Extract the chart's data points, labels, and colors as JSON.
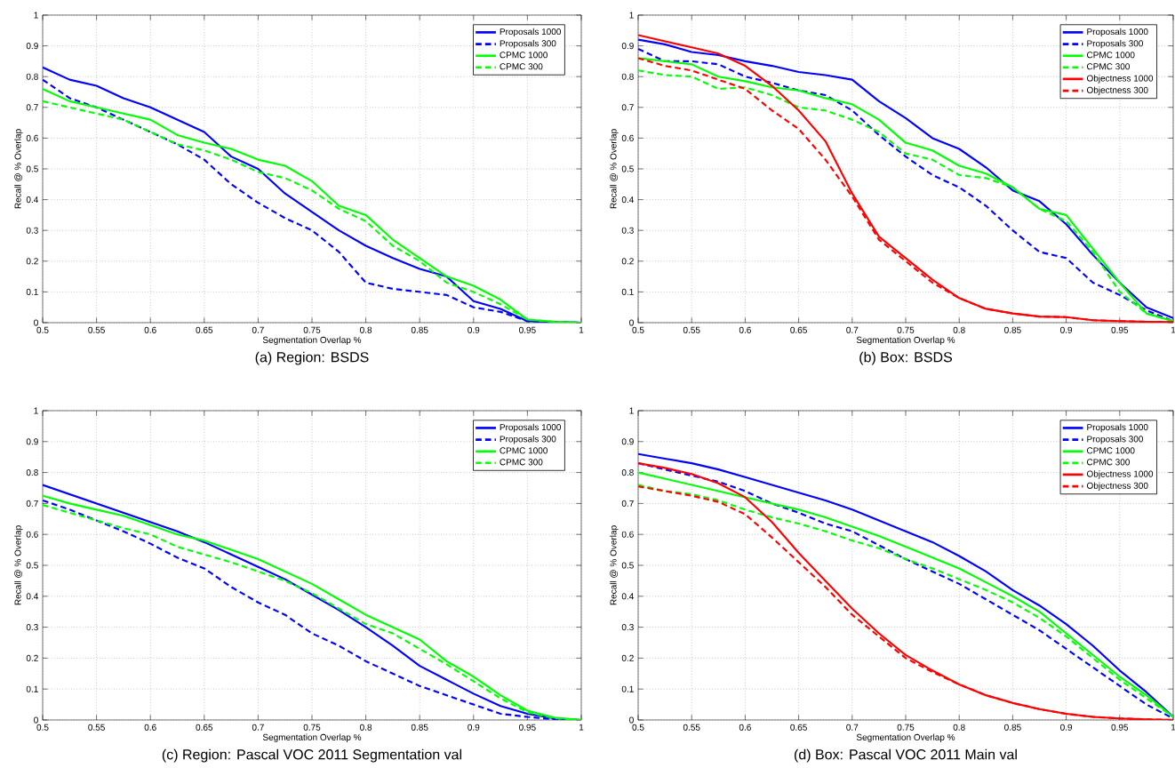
{
  "chart_data": [
    {
      "type": "line",
      "title": "(a) Region: BSDS",
      "xlabel": "Segmentation Overlap %",
      "ylabel": "Recall @ % Overlap",
      "x": [
        0.5,
        0.525,
        0.55,
        0.575,
        0.6,
        0.625,
        0.65,
        0.675,
        0.7,
        0.725,
        0.75,
        0.775,
        0.8,
        0.825,
        0.85,
        0.875,
        0.9,
        0.925,
        0.95,
        0.975,
        1
      ],
      "xlim": [
        0.5,
        1
      ],
      "ylim": [
        0,
        1
      ],
      "xticks": [
        0.5,
        0.55,
        0.6,
        0.65,
        0.7,
        0.75,
        0.8,
        0.85,
        0.9,
        0.95,
        1
      ],
      "yticks": [
        0,
        0.1,
        0.2,
        0.3,
        0.4,
        0.5,
        0.6,
        0.7,
        0.8,
        0.9,
        1
      ],
      "grid": true,
      "legend": "top right",
      "marker": "none",
      "series": [
        {
          "name": "Proposals 1000",
          "color": "#0000ff",
          "line_style": "solid",
          "values": [
            0.83,
            0.79,
            0.77,
            0.73,
            0.7,
            0.66,
            0.62,
            0.54,
            0.5,
            0.42,
            0.36,
            0.3,
            0.25,
            0.21,
            0.175,
            0.15,
            0.07,
            0.045,
            0.005,
            null,
            0
          ]
        },
        {
          "name": "Proposals 300",
          "color": "#0000ff",
          "line_style": "dashed",
          "values": [
            0.79,
            0.73,
            0.7,
            0.66,
            0.62,
            0.58,
            0.53,
            0.45,
            0.39,
            0.34,
            0.3,
            0.23,
            0.13,
            0.11,
            0.1,
            0.09,
            0.05,
            0.035,
            0.005,
            0.002,
            0
          ]
        },
        {
          "name": "CPMC 1000",
          "color": "#00ff00",
          "line_style": "solid",
          "values": [
            0.76,
            0.72,
            0.7,
            0.68,
            0.66,
            0.61,
            0.585,
            0.565,
            0.53,
            0.51,
            0.46,
            0.38,
            0.35,
            0.27,
            0.21,
            0.15,
            0.12,
            0.075,
            0.01,
            0.003,
            0
          ]
        },
        {
          "name": "CPMC 300",
          "color": "#00ff00",
          "line_style": "dashed",
          "values": [
            0.72,
            0.7,
            0.68,
            0.66,
            0.62,
            0.58,
            0.56,
            0.53,
            0.49,
            0.47,
            0.43,
            0.37,
            0.33,
            0.25,
            0.2,
            0.13,
            0.1,
            0.06,
            0.01,
            0.003,
            0
          ]
        }
      ]
    },
    {
      "type": "line",
      "title": "(b) Box: BSDS",
      "xlabel": "Segmentation Overlap %",
      "ylabel": "Recall @ % Overlap",
      "x": [
        0.5,
        0.525,
        0.55,
        0.575,
        0.6,
        0.625,
        0.65,
        0.675,
        0.7,
        0.725,
        0.75,
        0.775,
        0.8,
        0.825,
        0.85,
        0.875,
        0.9,
        0.925,
        0.95,
        0.975,
        1
      ],
      "xlim": [
        0.5,
        1
      ],
      "ylim": [
        0,
        1
      ],
      "xticks": [
        0.5,
        0.55,
        0.6,
        0.65,
        0.7,
        0.75,
        0.8,
        0.85,
        0.9,
        0.95,
        1
      ],
      "yticks": [
        0,
        0.1,
        0.2,
        0.3,
        0.4,
        0.5,
        0.6,
        0.7,
        0.8,
        0.9,
        1
      ],
      "grid": true,
      "legend": "top right",
      "marker": "none",
      "series": [
        {
          "name": "Proposals 1000",
          "color": "#0000ff",
          "line_style": "solid",
          "values": [
            0.92,
            0.905,
            0.88,
            0.87,
            0.85,
            0.835,
            0.815,
            0.805,
            0.79,
            0.72,
            0.665,
            0.6,
            0.565,
            0.505,
            0.43,
            0.395,
            0.32,
            0.22,
            0.13,
            0.05,
            0.015
          ]
        },
        {
          "name": "Proposals 300",
          "color": "#0000ff",
          "line_style": "dashed",
          "values": [
            0.89,
            0.85,
            0.85,
            0.84,
            0.8,
            0.78,
            0.755,
            0.74,
            0.69,
            0.61,
            0.54,
            0.48,
            0.44,
            0.38,
            0.3,
            0.23,
            0.21,
            0.13,
            0.09,
            0.04,
            0.005
          ]
        },
        {
          "name": "CPMC 1000",
          "color": "#00ff00",
          "line_style": "solid",
          "values": [
            0.86,
            0.85,
            0.84,
            0.8,
            0.785,
            0.765,
            0.755,
            0.73,
            0.71,
            0.66,
            0.585,
            0.56,
            0.51,
            0.485,
            0.44,
            0.37,
            0.35,
            0.24,
            0.13,
            0.03,
            0.005
          ]
        },
        {
          "name": "CPMC 300",
          "color": "#00ff00",
          "line_style": "dashed",
          "values": [
            0.82,
            0.805,
            0.8,
            0.76,
            0.765,
            0.74,
            0.7,
            0.69,
            0.66,
            0.62,
            0.55,
            0.53,
            0.48,
            0.47,
            0.44,
            0.37,
            0.33,
            0.23,
            0.1,
            0.03,
            0.005
          ]
        },
        {
          "name": "Objectness 1000",
          "color": "#ff0000",
          "line_style": "solid",
          "values": [
            0.935,
            0.915,
            0.895,
            0.875,
            0.835,
            0.77,
            0.69,
            0.59,
            0.42,
            0.28,
            0.21,
            0.14,
            0.08,
            0.045,
            0.03,
            0.02,
            0.018,
            0.008,
            0.005,
            0.003,
            0.002
          ]
        },
        {
          "name": "Objectness 300",
          "color": "#ff0000",
          "line_style": "dashed",
          "values": [
            0.86,
            0.835,
            0.82,
            0.79,
            0.76,
            0.69,
            0.63,
            0.53,
            0.41,
            0.27,
            0.2,
            0.13,
            0.08,
            0.045,
            0.03,
            0.02,
            0.018,
            0.008,
            0.005,
            0.003,
            0.002
          ]
        }
      ]
    },
    {
      "type": "line",
      "title": "(c) Region: Pascal VOC 2011 Segmentation val",
      "xlabel": "Segmentation Overlap %",
      "ylabel": "Recall @ % Overlap",
      "x": [
        0.5,
        0.525,
        0.55,
        0.575,
        0.6,
        0.625,
        0.65,
        0.675,
        0.7,
        0.725,
        0.75,
        0.775,
        0.8,
        0.825,
        0.85,
        0.875,
        0.9,
        0.925,
        0.95,
        0.975,
        1
      ],
      "xlim": [
        0.5,
        1
      ],
      "ylim": [
        0,
        1
      ],
      "xticks": [
        0.5,
        0.55,
        0.6,
        0.65,
        0.7,
        0.75,
        0.8,
        0.85,
        0.9,
        0.95,
        1
      ],
      "yticks": [
        0,
        0.1,
        0.2,
        0.3,
        0.4,
        0.5,
        0.6,
        0.7,
        0.8,
        0.9,
        1
      ],
      "grid": true,
      "legend": "top right",
      "marker": "none",
      "series": [
        {
          "name": "Proposals 1000",
          "color": "#0000ff",
          "line_style": "solid",
          "values": [
            0.76,
            0.73,
            0.7,
            0.67,
            0.64,
            0.61,
            0.575,
            0.535,
            0.495,
            0.455,
            0.405,
            0.355,
            0.3,
            0.24,
            0.175,
            0.13,
            0.085,
            0.045,
            0.02,
            0.005,
            0
          ]
        },
        {
          "name": "Proposals 300",
          "color": "#0000ff",
          "line_style": "dashed",
          "values": [
            0.71,
            0.68,
            0.645,
            0.61,
            0.57,
            0.525,
            0.49,
            0.43,
            0.38,
            0.34,
            0.28,
            0.24,
            0.19,
            0.15,
            0.11,
            0.08,
            0.05,
            0.02,
            0.01,
            0.002,
            0
          ]
        },
        {
          "name": "CPMC 1000",
          "color": "#00ff00",
          "line_style": "solid",
          "values": [
            0.725,
            0.7,
            0.68,
            0.66,
            0.63,
            0.6,
            0.58,
            0.55,
            0.52,
            0.48,
            0.44,
            0.39,
            0.34,
            0.3,
            0.26,
            0.19,
            0.14,
            0.08,
            0.03,
            0.008,
            0
          ]
        },
        {
          "name": "CPMC 300",
          "color": "#00ff00",
          "line_style": "dashed",
          "values": [
            0.695,
            0.67,
            0.645,
            0.62,
            0.6,
            0.56,
            0.535,
            0.51,
            0.48,
            0.45,
            0.41,
            0.36,
            0.31,
            0.28,
            0.23,
            0.18,
            0.125,
            0.07,
            0.025,
            0.006,
            0
          ]
        }
      ]
    },
    {
      "type": "line",
      "title": "(d) Box: Pascal VOC 2011 Main val",
      "xlabel": "Segmentation Overlap %",
      "ylabel": "Recall @ % Overlap",
      "x": [
        0.5,
        0.525,
        0.55,
        0.575,
        0.6,
        0.625,
        0.65,
        0.675,
        0.7,
        0.725,
        0.75,
        0.775,
        0.8,
        0.825,
        0.85,
        0.875,
        0.9,
        0.925,
        0.95,
        0.975,
        1
      ],
      "xlim": [
        0.5,
        1
      ],
      "ylim": [
        0,
        1
      ],
      "xticks": [
        0.5,
        0.55,
        0.6,
        0.65,
        0.7,
        0.75,
        0.8,
        0.85,
        0.9,
        0.95,
        1
      ],
      "yticks": [
        0,
        0.1,
        0.2,
        0.3,
        0.4,
        0.5,
        0.6,
        0.7,
        0.8,
        0.9,
        1
      ],
      "grid": true,
      "legend": "top right",
      "marker": "none",
      "series": [
        {
          "name": "Proposals 1000",
          "color": "#0000ff",
          "line_style": "solid",
          "values": [
            0.86,
            0.845,
            0.83,
            0.81,
            0.785,
            0.76,
            0.735,
            0.71,
            0.68,
            0.645,
            0.61,
            0.575,
            0.53,
            0.48,
            0.42,
            0.37,
            0.31,
            0.24,
            0.16,
            0.09,
            0.01
          ]
        },
        {
          "name": "Proposals 300",
          "color": "#0000ff",
          "line_style": "dashed",
          "values": [
            0.83,
            0.81,
            0.79,
            0.77,
            0.74,
            0.7,
            0.67,
            0.635,
            0.61,
            0.565,
            0.52,
            0.48,
            0.44,
            0.39,
            0.34,
            0.29,
            0.23,
            0.17,
            0.11,
            0.05,
            0.005
          ]
        },
        {
          "name": "CPMC 1000",
          "color": "#00ff00",
          "line_style": "solid",
          "values": [
            0.8,
            0.78,
            0.76,
            0.74,
            0.72,
            0.7,
            0.68,
            0.655,
            0.625,
            0.595,
            0.56,
            0.525,
            0.49,
            0.445,
            0.4,
            0.35,
            0.28,
            0.21,
            0.14,
            0.08,
            0.01
          ]
        },
        {
          "name": "CPMC 300",
          "color": "#00ff00",
          "line_style": "dashed",
          "values": [
            0.76,
            0.74,
            0.73,
            0.71,
            0.68,
            0.655,
            0.635,
            0.61,
            0.58,
            0.555,
            0.52,
            0.49,
            0.455,
            0.42,
            0.38,
            0.33,
            0.27,
            0.2,
            0.13,
            0.07,
            0.01
          ]
        },
        {
          "name": "Objectness 1000",
          "color": "#ff0000",
          "line_style": "solid",
          "values": [
            0.83,
            0.815,
            0.795,
            0.765,
            0.72,
            0.64,
            0.54,
            0.45,
            0.36,
            0.28,
            0.21,
            0.16,
            0.115,
            0.08,
            0.055,
            0.035,
            0.02,
            0.01,
            0.005,
            0.002,
            0
          ]
        },
        {
          "name": "Objectness 300",
          "color": "#ff0000",
          "line_style": "dashed",
          "values": [
            0.755,
            0.74,
            0.725,
            0.705,
            0.665,
            0.59,
            0.51,
            0.43,
            0.34,
            0.27,
            0.2,
            0.155,
            0.115,
            0.08,
            0.055,
            0.035,
            0.02,
            0.01,
            0.005,
            0.002,
            0
          ]
        }
      ]
    }
  ]
}
